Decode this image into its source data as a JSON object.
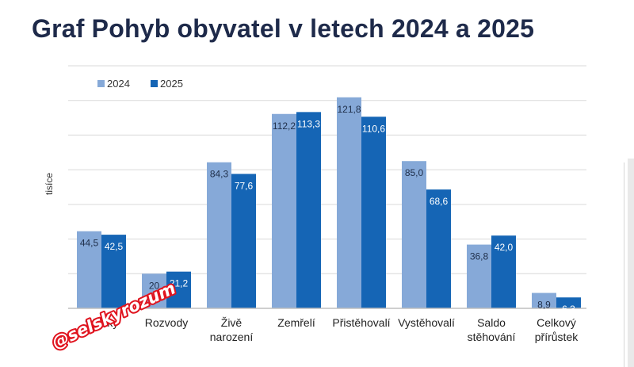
{
  "title": "Graf Pohyb obyvatel v letech 2024 a 2025",
  "watermark": "@selskyrozum",
  "colors": {
    "series_2024": "#86a9d8",
    "series_2025": "#1565b5",
    "title": "#1e2a4a",
    "watermark": "#e0141f"
  },
  "chart_data": {
    "type": "bar",
    "title": "Graf Pohyb obyvatel v letech 2024 a 2025",
    "xlabel": "",
    "ylabel": "tisíce",
    "ylim": [
      0,
      140
    ],
    "grid": true,
    "legend": "top-left",
    "categories": [
      [
        "Sňatky"
      ],
      [
        "Rozvody"
      ],
      [
        "Živě",
        "narození"
      ],
      [
        "Zemřelí"
      ],
      [
        "Přistěhovalí"
      ],
      [
        "Vystěhovalí"
      ],
      [
        "Saldo",
        "stěhování"
      ],
      [
        "Celkový",
        "přírůstek"
      ]
    ],
    "series": [
      {
        "name": "2024",
        "values": [
          44.5,
          20.0,
          84.3,
          112.2,
          121.8,
          85.0,
          36.8,
          8.9
        ],
        "labels": [
          "44,5",
          "20",
          "84,3",
          "112,2",
          "121,8",
          "85,0",
          "36,8",
          "8,9"
        ]
      },
      {
        "name": "2025",
        "values": [
          42.5,
          21.2,
          77.6,
          113.3,
          110.6,
          68.6,
          42.0,
          6.3
        ],
        "labels": [
          "42,5",
          "21,2",
          "77,6",
          "113,3",
          "110,6",
          "68,6",
          "42,0",
          "6,3"
        ]
      }
    ]
  }
}
